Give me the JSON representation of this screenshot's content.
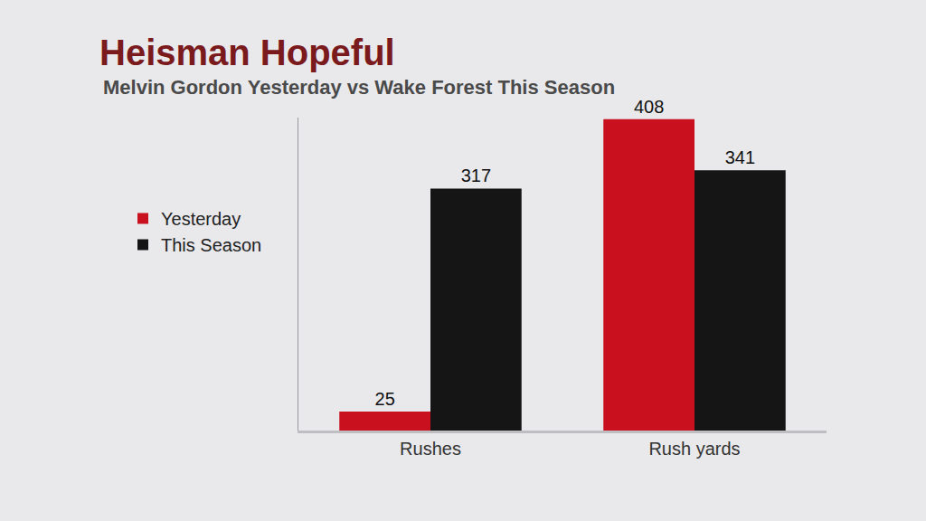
{
  "chart_data": {
    "type": "bar",
    "title": "Heisman Hopeful",
    "subtitle": "Melvin Gordon Yesterday vs Wake Forest This Season",
    "categories": [
      "Rushes",
      "Rush yards"
    ],
    "series": [
      {
        "name": "Yesterday",
        "color": "#c8101e",
        "values": [
          25,
          408
        ]
      },
      {
        "name": "This Season",
        "color": "#151515",
        "values": [
          317,
          341
        ]
      }
    ],
    "ylim": [
      0,
      410
    ],
    "data_labels": true,
    "tick_labels": "x",
    "legend": "left"
  }
}
